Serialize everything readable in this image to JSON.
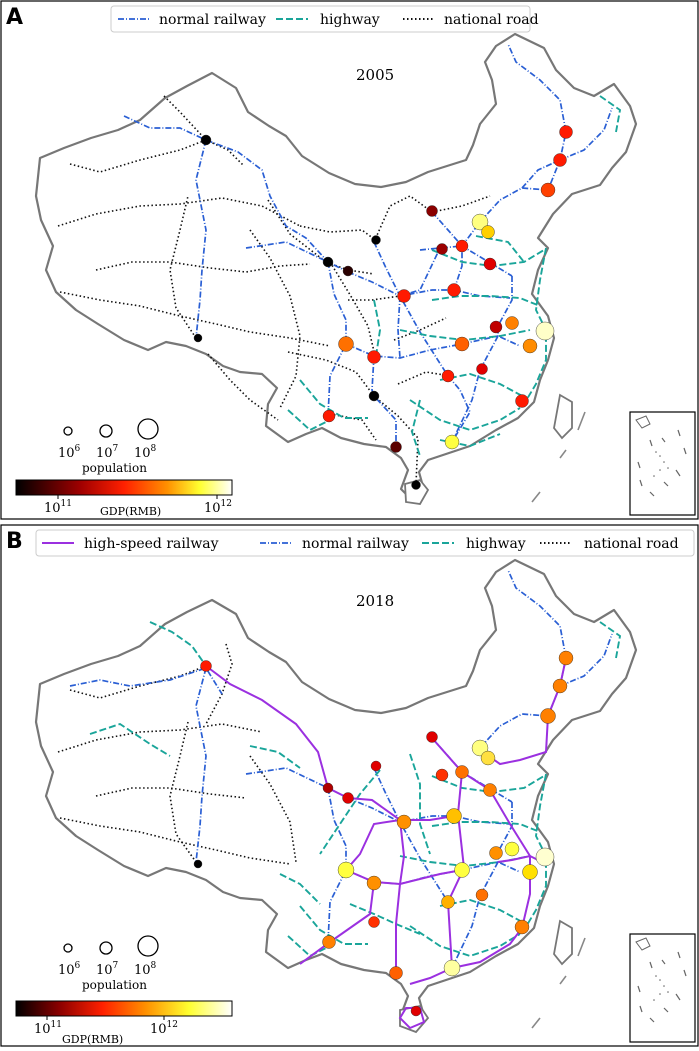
{
  "colors": {
    "high_speed_railway": "#9b30e0",
    "normal_railway": "#2a5fd4",
    "highway": "#1aa59a",
    "national_road": "#111111",
    "border": "#777777"
  },
  "panels": [
    {
      "label": "A",
      "year": "2005",
      "legend": [
        {
          "label": "normal railway",
          "style": "normal_railway"
        },
        {
          "label": "highway",
          "style": "highway"
        },
        {
          "label": "national road",
          "style": "national_road"
        }
      ],
      "population_legend": {
        "title": "population",
        "sizes": [
          {
            "label": "10",
            "exp": "6"
          },
          {
            "label": "10",
            "exp": "7"
          },
          {
            "label": "10",
            "exp": "8"
          }
        ]
      },
      "colorbar": {
        "title": "GDP(RMB)",
        "ticks": [
          {
            "label": "10",
            "exp": "11"
          },
          {
            "label": "10",
            "exp": "12"
          }
        ]
      }
    },
    {
      "label": "B",
      "year": "2018",
      "legend": [
        {
          "label": "high-speed railway",
          "style": "high_speed_railway"
        },
        {
          "label": "normal railway",
          "style": "normal_railway"
        },
        {
          "label": "highway",
          "style": "highway"
        },
        {
          "label": "national road",
          "style": "national_road"
        }
      ],
      "population_legend": {
        "title": "population",
        "sizes": [
          {
            "label": "10",
            "exp": "6"
          },
          {
            "label": "10",
            "exp": "7"
          },
          {
            "label": "10",
            "exp": "8"
          }
        ]
      },
      "colorbar": {
        "title": "GDP(RMB)",
        "ticks": [
          {
            "label": "10",
            "exp": "11"
          },
          {
            "label": "10",
            "exp": "12"
          }
        ]
      }
    }
  ]
}
